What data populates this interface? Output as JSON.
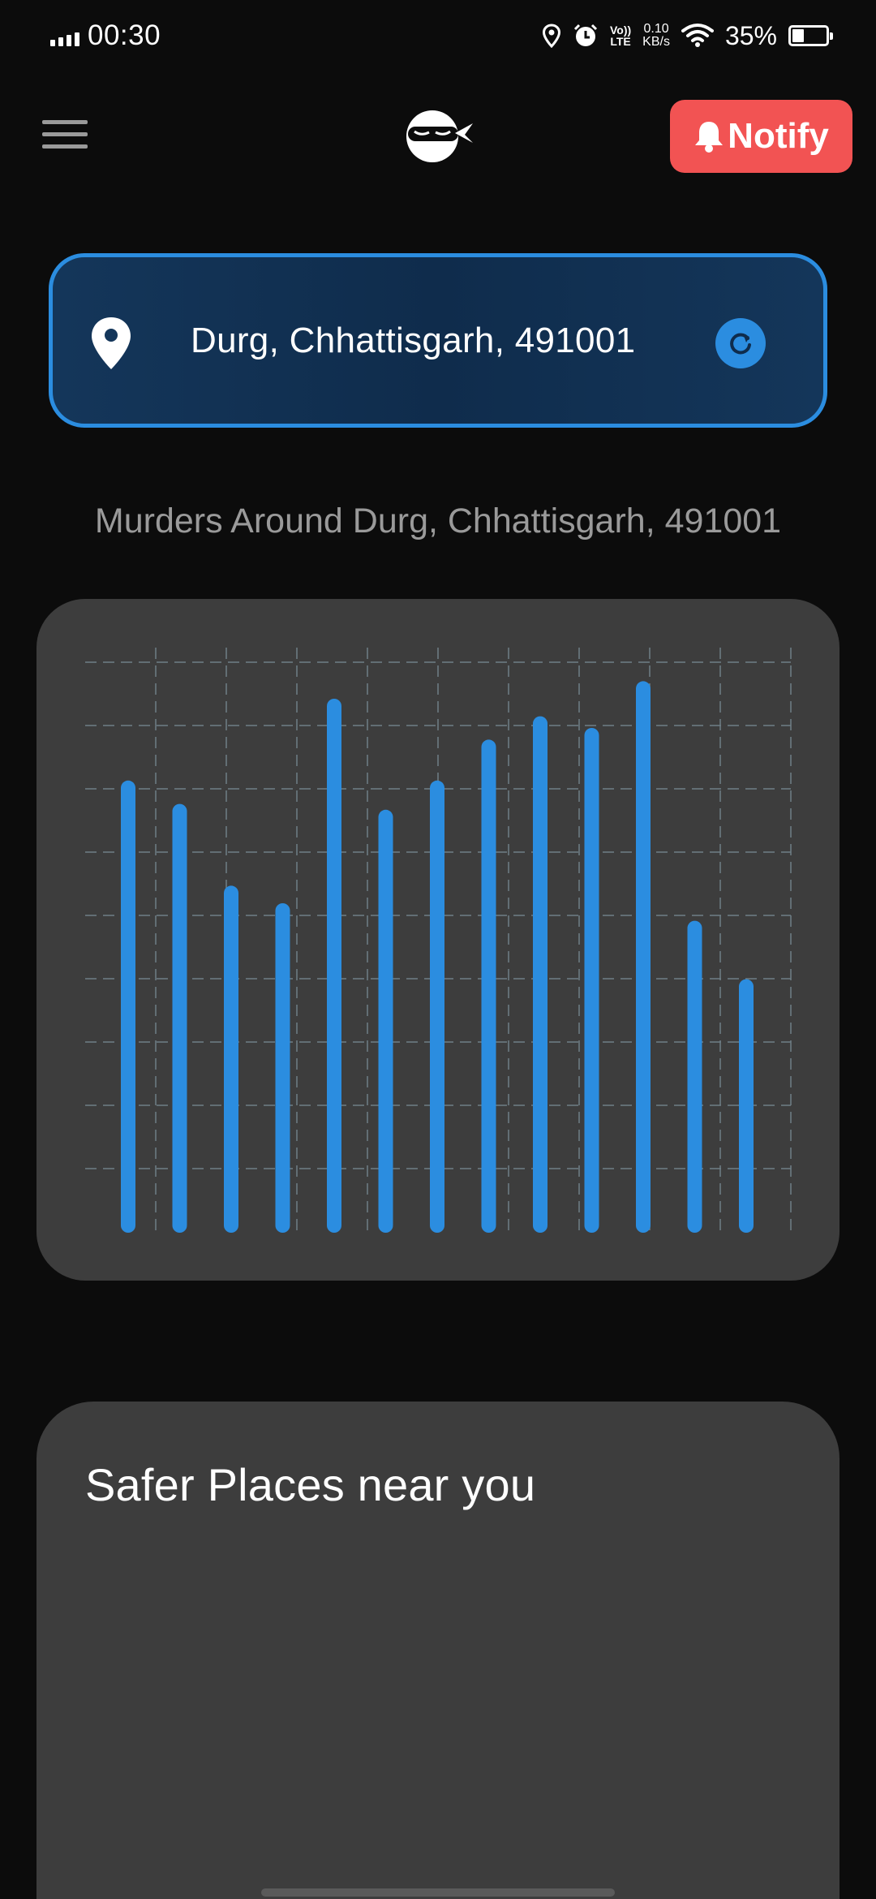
{
  "status_bar": {
    "time": "00:30",
    "volte_top": "Vo))",
    "volte_bottom": "LTE",
    "net_speed_value": "0.10",
    "net_speed_unit": "KB/s",
    "battery_percent": "35%",
    "battery_level": 0.35
  },
  "header": {
    "menu_icon": "hamburger-menu-icon",
    "logo_icon": "ninja-logo-icon",
    "notify_label": "Notify",
    "notify_icon": "bell-icon",
    "notify_color": "#f25353"
  },
  "location": {
    "text": "Durg, Chhattisgarh, 491001",
    "pin_icon": "location-pin-icon",
    "refresh_icon": "refresh-icon",
    "accent_color": "#2b8de0"
  },
  "chart_section": {
    "title": "Murders Around Durg, Chhattisgarh, 491001"
  },
  "chart_data": {
    "type": "bar",
    "title": "Murders Around Durg, Chhattisgarh, 491001",
    "categories": [
      "",
      "",
      "",
      "",
      "",
      "",
      "",
      "",
      "",
      "",
      "",
      "",
      ""
    ],
    "values": [
      76,
      72,
      58,
      55,
      90,
      71,
      76,
      83,
      87,
      85,
      93,
      52,
      42
    ],
    "ylim": [
      0,
      100
    ],
    "grid": true,
    "bar_color": "#2b8de0",
    "xlabel": "",
    "ylabel": ""
  },
  "safer_places": {
    "title": "Safer Places near you"
  }
}
